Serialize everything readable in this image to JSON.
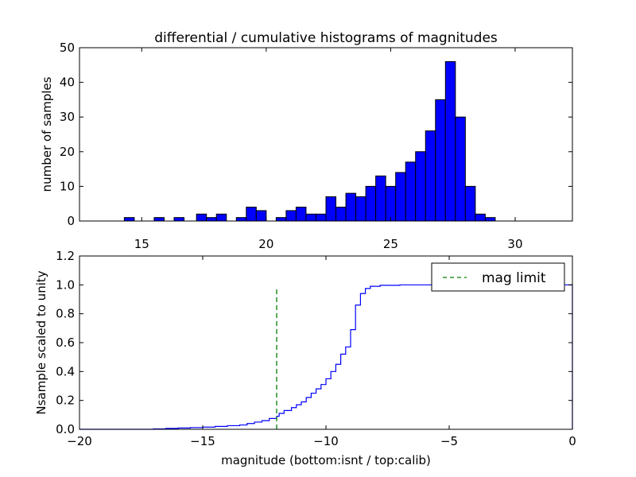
{
  "figure": {
    "title": "differential / cumulative histograms of magnitudes"
  },
  "chart_data": [
    {
      "type": "bar",
      "subtype": "histogram",
      "title": "differential / cumulative histograms of magnitudes",
      "ylabel": "number of samples",
      "xlabel": "",
      "xlim": [
        12.5,
        32.3
      ],
      "ylim": [
        0,
        50
      ],
      "xticks": [
        15,
        20,
        25,
        30
      ],
      "yticks": [
        0,
        10,
        20,
        30,
        40,
        50
      ],
      "bar_color": "#0000ff",
      "bins": [
        {
          "x0": 14.3,
          "x1": 14.7,
          "value": 1
        },
        {
          "x0": 15.5,
          "x1": 15.9,
          "value": 1
        },
        {
          "x0": 16.3,
          "x1": 16.7,
          "value": 1
        },
        {
          "x0": 17.2,
          "x1": 17.6,
          "value": 2
        },
        {
          "x0": 17.6,
          "x1": 18.0,
          "value": 1
        },
        {
          "x0": 18.0,
          "x1": 18.4,
          "value": 2
        },
        {
          "x0": 18.8,
          "x1": 19.2,
          "value": 1
        },
        {
          "x0": 19.2,
          "x1": 19.6,
          "value": 4
        },
        {
          "x0": 19.6,
          "x1": 20.0,
          "value": 3
        },
        {
          "x0": 20.4,
          "x1": 20.8,
          "value": 1
        },
        {
          "x0": 20.8,
          "x1": 21.2,
          "value": 3
        },
        {
          "x0": 21.2,
          "x1": 21.6,
          "value": 4
        },
        {
          "x0": 21.6,
          "x1": 22.0,
          "value": 2
        },
        {
          "x0": 22.0,
          "x1": 22.4,
          "value": 2
        },
        {
          "x0": 22.4,
          "x1": 22.8,
          "value": 7
        },
        {
          "x0": 22.8,
          "x1": 23.2,
          "value": 4
        },
        {
          "x0": 23.2,
          "x1": 23.6,
          "value": 8
        },
        {
          "x0": 23.6,
          "x1": 24.0,
          "value": 7
        },
        {
          "x0": 24.0,
          "x1": 24.4,
          "value": 10
        },
        {
          "x0": 24.4,
          "x1": 24.8,
          "value": 13
        },
        {
          "x0": 24.8,
          "x1": 25.2,
          "value": 10
        },
        {
          "x0": 25.2,
          "x1": 25.6,
          "value": 14
        },
        {
          "x0": 25.6,
          "x1": 26.0,
          "value": 17
        },
        {
          "x0": 26.0,
          "x1": 26.4,
          "value": 20
        },
        {
          "x0": 26.4,
          "x1": 26.8,
          "value": 26
        },
        {
          "x0": 26.8,
          "x1": 27.2,
          "value": 35
        },
        {
          "x0": 27.2,
          "x1": 27.6,
          "value": 46
        },
        {
          "x0": 27.6,
          "x1": 28.0,
          "value": 30
        },
        {
          "x0": 28.0,
          "x1": 28.4,
          "value": 10
        },
        {
          "x0": 28.4,
          "x1": 28.8,
          "value": 2
        },
        {
          "x0": 28.8,
          "x1": 29.2,
          "value": 1
        }
      ]
    },
    {
      "type": "line",
      "subtype": "step",
      "ylabel": "Nsample scaled to unity",
      "xlabel": "magnitude (bottom:isnt / top:calib)",
      "xlim": [
        -20,
        0
      ],
      "ylim": [
        0,
        1.2
      ],
      "xticks": [
        -20,
        -15,
        -10,
        -5,
        0
      ],
      "xtick_labels": [
        "−20",
        "−15",
        "−10",
        "−5",
        "0"
      ],
      "yticks": [
        0.0,
        0.2,
        0.4,
        0.6,
        0.8,
        1.0,
        1.2
      ],
      "ytick_labels": [
        "0.0",
        "0.2",
        "0.4",
        "0.6",
        "0.8",
        "1.0",
        "1.2"
      ],
      "legend": {
        "position": "upper-right",
        "entries": [
          "mag limit"
        ]
      },
      "series": [
        {
          "style": "solid-step",
          "color": "#0000ff",
          "points": [
            [
              -20.0,
              0.0
            ],
            [
              -17.0,
              0.003
            ],
            [
              -16.5,
              0.006
            ],
            [
              -16.0,
              0.009
            ],
            [
              -15.5,
              0.012
            ],
            [
              -15.0,
              0.015
            ],
            [
              -14.5,
              0.02
            ],
            [
              -14.0,
              0.025
            ],
            [
              -13.5,
              0.03
            ],
            [
              -13.2,
              0.04
            ],
            [
              -12.9,
              0.05
            ],
            [
              -12.6,
              0.06
            ],
            [
              -12.3,
              0.075
            ],
            [
              -12.0,
              0.09
            ],
            [
              -11.9,
              0.11
            ],
            [
              -11.7,
              0.13
            ],
            [
              -11.4,
              0.15
            ],
            [
              -11.2,
              0.17
            ],
            [
              -11.0,
              0.19
            ],
            [
              -10.8,
              0.22
            ],
            [
              -10.6,
              0.25
            ],
            [
              -10.4,
              0.28
            ],
            [
              -10.2,
              0.31
            ],
            [
              -10.0,
              0.35
            ],
            [
              -9.8,
              0.4
            ],
            [
              -9.6,
              0.45
            ],
            [
              -9.4,
              0.52
            ],
            [
              -9.2,
              0.57
            ],
            [
              -9.0,
              0.69
            ],
            [
              -8.8,
              0.86
            ],
            [
              -8.6,
              0.94
            ],
            [
              -8.4,
              0.975
            ],
            [
              -8.2,
              0.99
            ],
            [
              -7.8,
              0.997
            ],
            [
              -7.0,
              1.0
            ],
            [
              0.0,
              1.0
            ]
          ]
        },
        {
          "name": "mag limit",
          "style": "dashed-vertical",
          "color": "#008000",
          "x": -12.0,
          "y_range": [
            0.0,
            0.97
          ]
        }
      ]
    }
  ]
}
